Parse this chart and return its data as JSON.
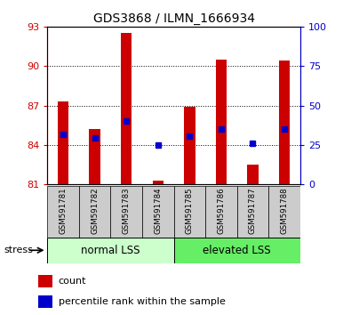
{
  "title": "GDS3868 / ILMN_1666934",
  "samples": [
    "GSM591781",
    "GSM591782",
    "GSM591783",
    "GSM591784",
    "GSM591785",
    "GSM591786",
    "GSM591787",
    "GSM591788"
  ],
  "bar_heights": [
    87.3,
    85.2,
    92.5,
    81.3,
    86.9,
    90.5,
    82.5,
    90.4
  ],
  "bar_base": 81,
  "blue_dots": [
    84.8,
    84.5,
    85.8,
    84.0,
    84.7,
    85.2,
    84.1,
    85.2
  ],
  "ylim_left": [
    81,
    93
  ],
  "yticks_left": [
    81,
    84,
    87,
    90,
    93
  ],
  "yticks_right": [
    0,
    25,
    50,
    75,
    100
  ],
  "ylim_right": [
    0,
    100
  ],
  "group1_label": "normal LSS",
  "group2_label": "elevated LSS",
  "group1_count": 4,
  "group2_count": 4,
  "stress_label": "stress",
  "bar_color": "#cc0000",
  "dot_color": "#0000cc",
  "group1_bg": "#ccffcc",
  "group2_bg": "#66ee66",
  "left_tick_color": "#cc0000",
  "right_tick_color": "#0000cc",
  "grid_color": "#000000",
  "sample_bg": "#cccccc",
  "legend_count_label": "count",
  "legend_pct_label": "percentile rank within the sample"
}
